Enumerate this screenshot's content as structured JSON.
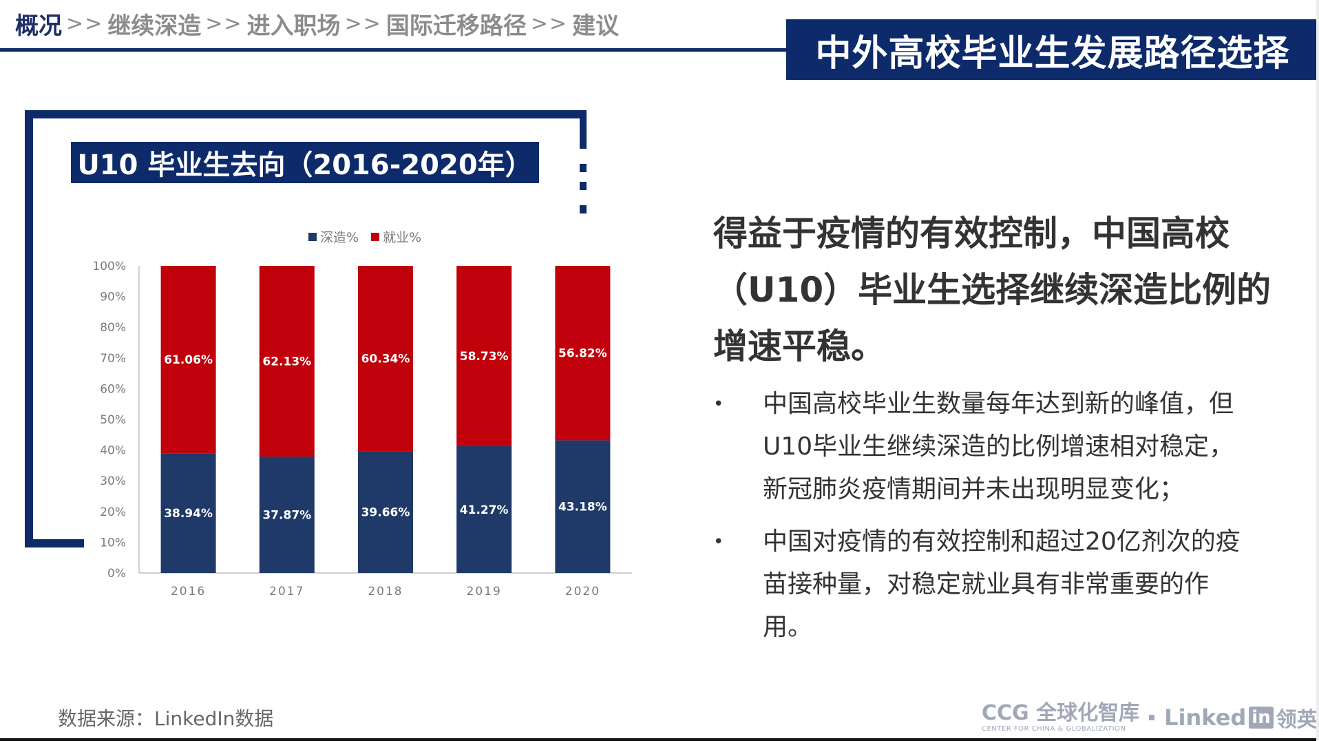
{
  "breadcrumb": {
    "items": [
      "概况",
      "继续深造",
      "进入职场",
      "国际迁移路径",
      "建议"
    ],
    "separator": ">>"
  },
  "page_title": "中外高校毕业生发展路径选择",
  "chart_title": "U10 毕业生去向（2016-2020年）",
  "chart_data": {
    "type": "bar",
    "stacked": true,
    "percent_stacked": true,
    "categories": [
      "2016",
      "2017",
      "2018",
      "2019",
      "2020"
    ],
    "series": [
      {
        "name": "深造%",
        "values": [
          38.94,
          37.87,
          39.66,
          41.27,
          43.18
        ],
        "labels": [
          "38.94%",
          "37.87%",
          "39.66%",
          "41.27%",
          "43.18%"
        ],
        "color": "#1f3a68"
      },
      {
        "name": "就业%",
        "values": [
          61.06,
          62.13,
          60.34,
          58.73,
          56.82
        ],
        "labels": [
          "61.06%",
          "62.13%",
          "60.34%",
          "58.73%",
          "56.82%"
        ],
        "color": "#c0000b"
      }
    ],
    "yticks": [
      "0%",
      "10%",
      "20%",
      "30%",
      "40%",
      "50%",
      "60%",
      "70%",
      "80%",
      "90%",
      "100%"
    ],
    "ylim": [
      0,
      100
    ],
    "legend_position": "top",
    "grid": false
  },
  "headline": "得益于疫情的有效控制，中国高校（U10）毕业生选择继续深造比例的增速平稳。",
  "bullets": [
    {
      "dot": "•",
      "text": "中国高校毕业生数量每年达到新的峰值，但U10毕业生继续深造的比例增速相对稳定，新冠肺炎疫情期间并未出现明显变化；"
    },
    {
      "dot": "•",
      "text": "中国对疫情的有效控制和超过20亿剂次的疫苗接种量，对稳定就业具有非常重要的作用。"
    }
  ],
  "source": "数据来源：LinkedIn数据",
  "logos": {
    "ccg": "CCG",
    "ccg_cn": "全球化智库",
    "ccg_sub": "CENTER FOR CHINA & GLOBALIZATION",
    "linkedin": "Linked",
    "linkedin_in": "in",
    "linkedin_cn": "领英"
  }
}
